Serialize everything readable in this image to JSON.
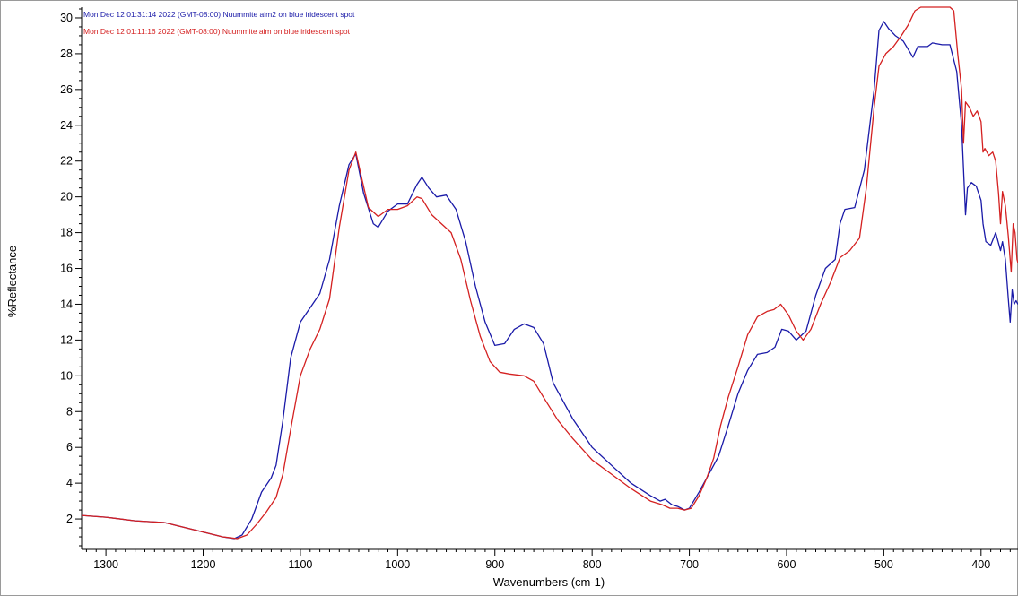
{
  "chart_data": {
    "type": "line",
    "xlabel": "Wavenumbers (cm-1)",
    "ylabel": "%Reflectance",
    "xlim": [
      1325,
      362
    ],
    "ylim": [
      0.3,
      30.6
    ],
    "x_ticks": [
      1300,
      1200,
      1100,
      1000,
      900,
      800,
      700,
      600,
      500,
      400
    ],
    "y_ticks": [
      2,
      4,
      6,
      8,
      10,
      12,
      14,
      16,
      18,
      20,
      22,
      24,
      26,
      28,
      30
    ],
    "grid": false,
    "legend_position": "top-left",
    "series": [
      {
        "name": "Mon Dec 12 01:31:14 2022 (GMT-08:00) Nuummite aim2 on blue iridescent spot",
        "color": "#1a1aa8",
        "points": [
          [
            1325,
            2.2
          ],
          [
            1300,
            2.1
          ],
          [
            1270,
            1.9
          ],
          [
            1240,
            1.8
          ],
          [
            1210,
            1.4
          ],
          [
            1180,
            1.0
          ],
          [
            1168,
            0.9
          ],
          [
            1160,
            1.1
          ],
          [
            1150,
            2.0
          ],
          [
            1140,
            3.5
          ],
          [
            1130,
            4.3
          ],
          [
            1125,
            5.0
          ],
          [
            1118,
            7.5
          ],
          [
            1110,
            11.0
          ],
          [
            1100,
            13.0
          ],
          [
            1090,
            13.8
          ],
          [
            1080,
            14.6
          ],
          [
            1070,
            16.5
          ],
          [
            1060,
            19.5
          ],
          [
            1050,
            21.8
          ],
          [
            1043,
            22.4
          ],
          [
            1035,
            20.2
          ],
          [
            1025,
            18.5
          ],
          [
            1020,
            18.3
          ],
          [
            1010,
            19.2
          ],
          [
            1000,
            19.6
          ],
          [
            990,
            19.6
          ],
          [
            980,
            20.7
          ],
          [
            975,
            21.1
          ],
          [
            968,
            20.5
          ],
          [
            960,
            20.0
          ],
          [
            950,
            20.1
          ],
          [
            940,
            19.3
          ],
          [
            930,
            17.5
          ],
          [
            920,
            15.0
          ],
          [
            910,
            13.0
          ],
          [
            900,
            11.7
          ],
          [
            890,
            11.8
          ],
          [
            880,
            12.6
          ],
          [
            870,
            12.9
          ],
          [
            860,
            12.7
          ],
          [
            850,
            11.8
          ],
          [
            840,
            9.6
          ],
          [
            820,
            7.6
          ],
          [
            800,
            6.0
          ],
          [
            780,
            5.0
          ],
          [
            760,
            4.0
          ],
          [
            740,
            3.3
          ],
          [
            730,
            3.0
          ],
          [
            725,
            3.1
          ],
          [
            718,
            2.8
          ],
          [
            712,
            2.7
          ],
          [
            705,
            2.5
          ],
          [
            700,
            2.6
          ],
          [
            690,
            3.5
          ],
          [
            680,
            4.5
          ],
          [
            670,
            5.5
          ],
          [
            660,
            7.2
          ],
          [
            650,
            9.0
          ],
          [
            640,
            10.3
          ],
          [
            630,
            11.2
          ],
          [
            620,
            11.3
          ],
          [
            612,
            11.6
          ],
          [
            605,
            12.6
          ],
          [
            598,
            12.5
          ],
          [
            590,
            12.0
          ],
          [
            580,
            12.5
          ],
          [
            570,
            14.5
          ],
          [
            560,
            16.0
          ],
          [
            550,
            16.5
          ],
          [
            545,
            18.5
          ],
          [
            540,
            19.3
          ],
          [
            530,
            19.4
          ],
          [
            520,
            21.5
          ],
          [
            510,
            26.0
          ],
          [
            505,
            29.3
          ],
          [
            500,
            29.8
          ],
          [
            495,
            29.4
          ],
          [
            488,
            29.0
          ],
          [
            480,
            28.7
          ],
          [
            470,
            27.8
          ],
          [
            465,
            28.4
          ],
          [
            455,
            28.4
          ],
          [
            450,
            28.6
          ],
          [
            440,
            28.5
          ],
          [
            432,
            28.5
          ],
          [
            425,
            27.0
          ],
          [
            420,
            24.0
          ],
          [
            418,
            21.5
          ],
          [
            416,
            19.0
          ],
          [
            414,
            20.5
          ],
          [
            410,
            20.8
          ],
          [
            405,
            20.6
          ],
          [
            400,
            19.8
          ],
          [
            398,
            18.5
          ],
          [
            395,
            17.5
          ],
          [
            390,
            17.3
          ],
          [
            385,
            18.0
          ],
          [
            380,
            17.0
          ],
          [
            378,
            17.5
          ],
          [
            375,
            16.5
          ],
          [
            372,
            14.3
          ],
          [
            370,
            13.0
          ],
          [
            368,
            14.8
          ],
          [
            366,
            14.0
          ],
          [
            364,
            14.2
          ],
          [
            362,
            14.0
          ]
        ]
      },
      {
        "name": "Mon Dec 12 01:11:16 2022 (GMT-08:00) Nuummite aim on blue iridescent spot",
        "color": "#d42020",
        "points": [
          [
            1325,
            2.2
          ],
          [
            1300,
            2.1
          ],
          [
            1270,
            1.9
          ],
          [
            1240,
            1.8
          ],
          [
            1210,
            1.4
          ],
          [
            1180,
            1.0
          ],
          [
            1165,
            0.9
          ],
          [
            1155,
            1.1
          ],
          [
            1145,
            1.7
          ],
          [
            1135,
            2.4
          ],
          [
            1125,
            3.2
          ],
          [
            1118,
            4.5
          ],
          [
            1110,
            7.0
          ],
          [
            1100,
            10.0
          ],
          [
            1090,
            11.5
          ],
          [
            1080,
            12.6
          ],
          [
            1070,
            14.3
          ],
          [
            1060,
            18.3
          ],
          [
            1050,
            21.5
          ],
          [
            1043,
            22.5
          ],
          [
            1038,
            21.3
          ],
          [
            1030,
            19.4
          ],
          [
            1020,
            18.9
          ],
          [
            1010,
            19.3
          ],
          [
            1000,
            19.3
          ],
          [
            990,
            19.5
          ],
          [
            980,
            20.0
          ],
          [
            975,
            19.9
          ],
          [
            965,
            19.0
          ],
          [
            955,
            18.5
          ],
          [
            945,
            18.0
          ],
          [
            935,
            16.5
          ],
          [
            925,
            14.2
          ],
          [
            915,
            12.2
          ],
          [
            905,
            10.8
          ],
          [
            895,
            10.2
          ],
          [
            885,
            10.1
          ],
          [
            870,
            10.0
          ],
          [
            860,
            9.7
          ],
          [
            850,
            8.8
          ],
          [
            835,
            7.5
          ],
          [
            820,
            6.5
          ],
          [
            800,
            5.3
          ],
          [
            780,
            4.5
          ],
          [
            760,
            3.7
          ],
          [
            740,
            3.0
          ],
          [
            728,
            2.8
          ],
          [
            720,
            2.6
          ],
          [
            712,
            2.6
          ],
          [
            705,
            2.5
          ],
          [
            698,
            2.6
          ],
          [
            690,
            3.3
          ],
          [
            682,
            4.3
          ],
          [
            675,
            5.4
          ],
          [
            668,
            7.2
          ],
          [
            660,
            8.8
          ],
          [
            650,
            10.5
          ],
          [
            640,
            12.3
          ],
          [
            630,
            13.3
          ],
          [
            620,
            13.6
          ],
          [
            613,
            13.7
          ],
          [
            606,
            14.0
          ],
          [
            598,
            13.4
          ],
          [
            590,
            12.5
          ],
          [
            583,
            12.0
          ],
          [
            575,
            12.6
          ],
          [
            565,
            14.0
          ],
          [
            555,
            15.2
          ],
          [
            545,
            16.6
          ],
          [
            535,
            17.0
          ],
          [
            525,
            17.7
          ],
          [
            518,
            20.5
          ],
          [
            510,
            25.0
          ],
          [
            505,
            27.3
          ],
          [
            498,
            28.0
          ],
          [
            490,
            28.4
          ],
          [
            482,
            29.0
          ],
          [
            475,
            29.6
          ],
          [
            468,
            30.4
          ],
          [
            462,
            30.6
          ],
          [
            450,
            30.6
          ],
          [
            440,
            30.6
          ],
          [
            432,
            30.6
          ],
          [
            428,
            30.4
          ],
          [
            424,
            28.0
          ],
          [
            420,
            26.0
          ],
          [
            418,
            23.0
          ],
          [
            416,
            25.3
          ],
          [
            412,
            25.0
          ],
          [
            408,
            24.5
          ],
          [
            404,
            24.8
          ],
          [
            400,
            24.2
          ],
          [
            398,
            22.5
          ],
          [
            396,
            22.7
          ],
          [
            392,
            22.3
          ],
          [
            388,
            22.5
          ],
          [
            385,
            22.0
          ],
          [
            382,
            20.2
          ],
          [
            380,
            18.5
          ],
          [
            378,
            20.3
          ],
          [
            375,
            19.5
          ],
          [
            372,
            17.8
          ],
          [
            369,
            15.8
          ],
          [
            367,
            18.5
          ],
          [
            365,
            18.0
          ],
          [
            363,
            16.5
          ],
          [
            362,
            16.3
          ]
        ]
      }
    ]
  }
}
